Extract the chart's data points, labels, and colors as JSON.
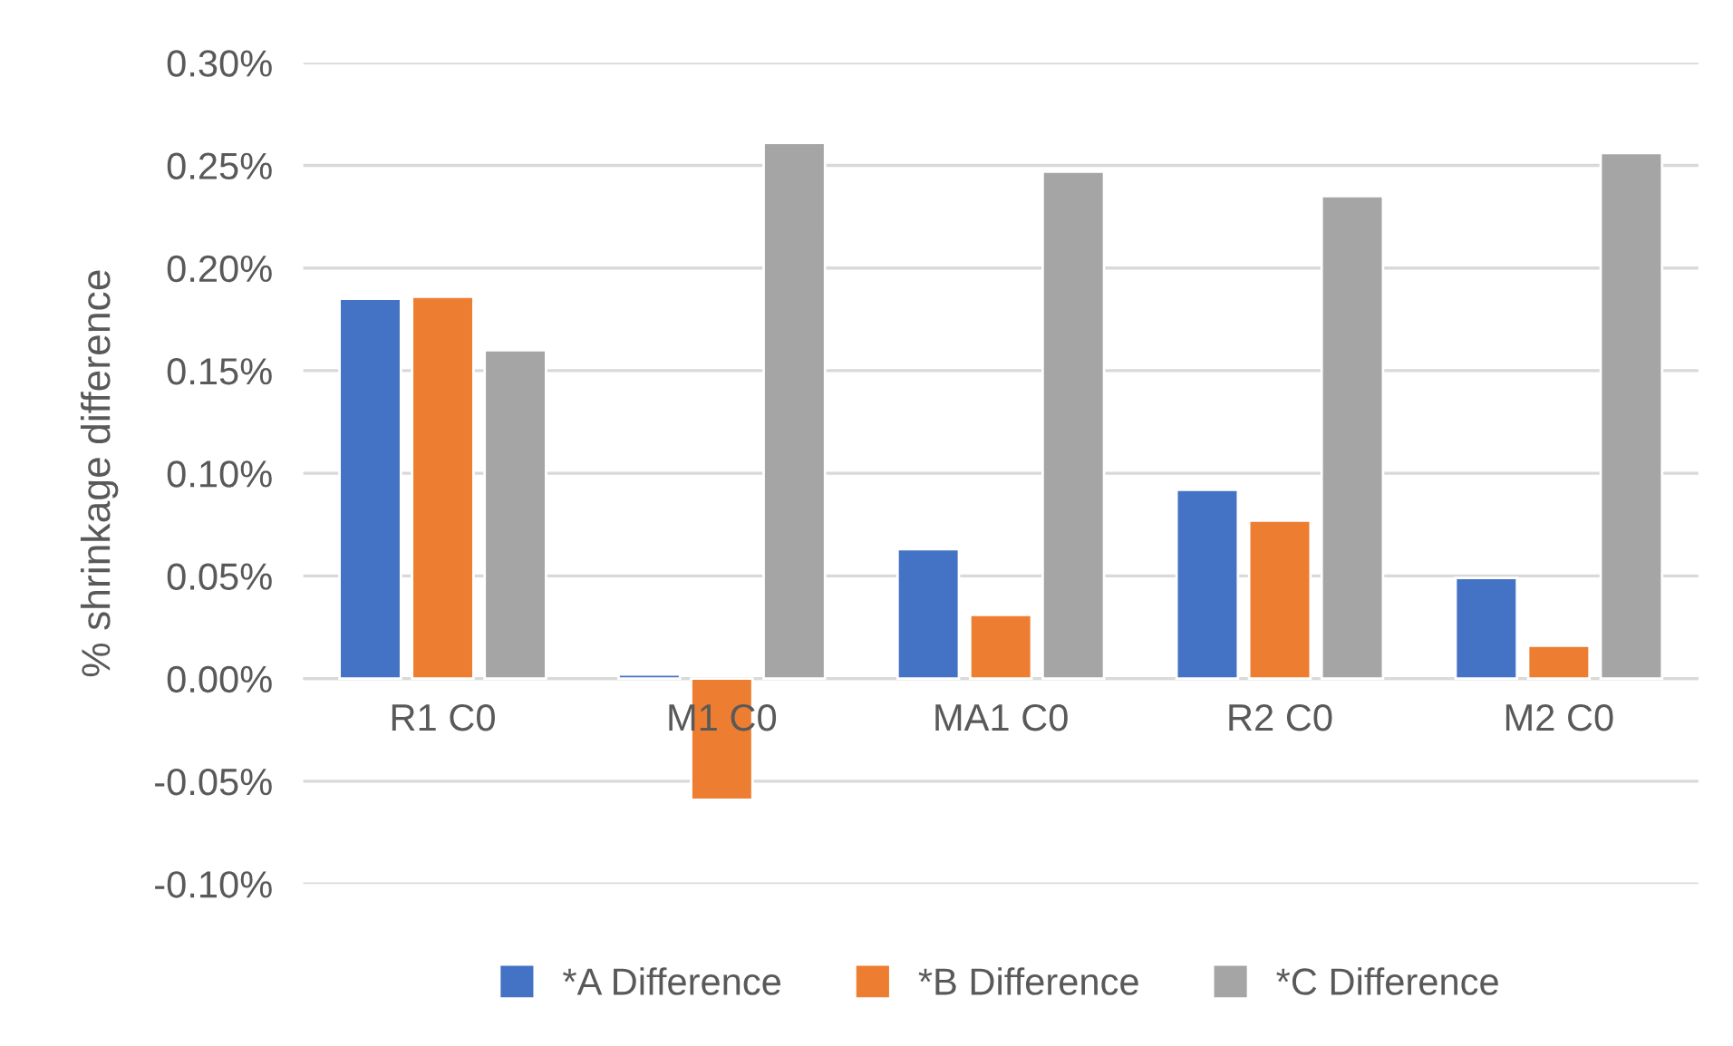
{
  "chart_data": {
    "type": "bar",
    "ylabel": "% shrinkage difference",
    "categories": [
      "R1 C0",
      "M1 C0",
      "MA1 C0",
      "R2 C0",
      "M2 C0"
    ],
    "series": [
      {
        "name": "*A Difference",
        "color": "#4472c4",
        "values": [
          0.185,
          0.002,
          0.063,
          0.092,
          0.049
        ]
      },
      {
        "name": "*B Difference",
        "color": "#ed7d31",
        "values": [
          0.186,
          -0.059,
          0.031,
          0.077,
          0.016
        ]
      },
      {
        "name": "*C Difference",
        "color": "#a5a5a5",
        "values": [
          0.16,
          0.261,
          0.247,
          0.235,
          0.256
        ]
      }
    ],
    "ylim": [
      -0.1,
      0.3
    ],
    "yticks": [
      {
        "value": -0.1,
        "label": "-0.10%"
      },
      {
        "value": -0.05,
        "label": "-0.05%"
      },
      {
        "value": 0,
        "label": "0.00%"
      },
      {
        "value": 0.05,
        "label": "0.05%"
      },
      {
        "value": 0.1,
        "label": "0.10%"
      },
      {
        "value": 0.15,
        "label": "0.15%"
      },
      {
        "value": 0.2,
        "label": "0.20%"
      },
      {
        "value": 0.25,
        "label": "0.25%"
      },
      {
        "value": 0.3,
        "label": "0.30%"
      }
    ],
    "grid": "y",
    "legend": "bottom"
  }
}
